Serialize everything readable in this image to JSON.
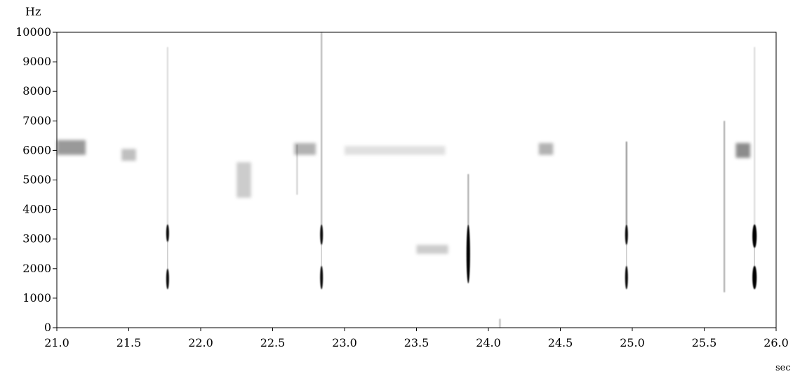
{
  "chart_data": {
    "type": "heatmap",
    "subtype": "spectrogram",
    "title": "",
    "y_unit_label": "Hz",
    "x_unit_label": "sec",
    "xlim": [
      21.0,
      26.0
    ],
    "ylim": [
      0,
      10000
    ],
    "x_ticks": [
      21.0,
      21.5,
      22.0,
      22.5,
      23.0,
      23.5,
      24.0,
      24.5,
      25.0,
      25.5,
      26.0
    ],
    "x_tick_labels": [
      "21.0",
      "21.5",
      "22.0",
      "22.5",
      "23.0",
      "23.5",
      "24.0",
      "24.5",
      "25.0",
      "25.5",
      "26.0"
    ],
    "y_ticks": [
      0,
      1000,
      2000,
      3000,
      4000,
      5000,
      6000,
      7000,
      8000,
      9000,
      10000
    ],
    "y_tick_labels": [
      "0",
      "1000",
      "2000",
      "3000",
      "4000",
      "5000",
      "6000",
      "7000",
      "8000",
      "9000",
      "10000"
    ],
    "grid": false,
    "colors": {
      "background": "#ffffff",
      "energy": "#000000",
      "axis": "#000000"
    },
    "events": [
      {
        "t": 21.77,
        "f_low": 1300,
        "f_high": 3500,
        "f_mid_gap": [
          2000,
          2900
        ],
        "intensity": 0.95,
        "width": 0.02
      },
      {
        "t": 22.84,
        "f_low": 1300,
        "f_high": 3500,
        "f_mid_gap": [
          2100,
          2800
        ],
        "intensity": 0.95,
        "width": 0.02
      },
      {
        "t": 23.86,
        "f_low": 1500,
        "f_high": 3500,
        "f_mid_gap": null,
        "intensity": 1.0,
        "width": 0.025
      },
      {
        "t": 24.96,
        "f_low": 1300,
        "f_high": 3500,
        "f_mid_gap": [
          2100,
          2800
        ],
        "intensity": 0.95,
        "width": 0.02
      },
      {
        "t": 25.85,
        "f_low": 1300,
        "f_high": 3500,
        "f_mid_gap": [
          2100,
          2700
        ],
        "intensity": 1.0,
        "width": 0.03
      }
    ],
    "faint_streaks": [
      {
        "t": 21.77,
        "f_low": 3500,
        "f_high": 9500,
        "intensity": 0.15
      },
      {
        "t": 22.84,
        "f_low": 3500,
        "f_high": 10000,
        "intensity": 0.3
      },
      {
        "t": 23.86,
        "f_low": 3500,
        "f_high": 5200,
        "intensity": 0.35
      },
      {
        "t": 24.96,
        "f_low": 3500,
        "f_high": 6300,
        "intensity": 0.45
      },
      {
        "t": 25.64,
        "f_low": 1200,
        "f_high": 7000,
        "intensity": 0.35
      },
      {
        "t": 25.85,
        "f_low": 3500,
        "f_high": 9500,
        "intensity": 0.15
      },
      {
        "t": 22.67,
        "f_low": 4500,
        "f_high": 6200,
        "intensity": 0.2
      },
      {
        "t": 24.08,
        "f_low": 0,
        "f_high": 300,
        "intensity": 0.3
      }
    ],
    "blobs": [
      {
        "t0": 21.0,
        "t1": 21.2,
        "f": 6100,
        "df": 250,
        "intensity": 0.4
      },
      {
        "t0": 21.45,
        "t1": 21.55,
        "f": 5850,
        "df": 200,
        "intensity": 0.25
      },
      {
        "t0": 22.65,
        "t1": 22.8,
        "f": 6050,
        "df": 200,
        "intensity": 0.3
      },
      {
        "t0": 24.35,
        "t1": 24.45,
        "f": 6050,
        "df": 200,
        "intensity": 0.3
      },
      {
        "t0": 25.72,
        "t1": 25.82,
        "f": 6000,
        "df": 250,
        "intensity": 0.45
      },
      {
        "t0": 22.25,
        "t1": 22.35,
        "f": 5000,
        "df": 600,
        "intensity": 0.2
      },
      {
        "t0": 23.5,
        "t1": 23.72,
        "f": 2650,
        "df": 150,
        "intensity": 0.2
      },
      {
        "t0": 23.0,
        "t1": 23.7,
        "f": 6000,
        "df": 150,
        "intensity": 0.12
      }
    ]
  }
}
